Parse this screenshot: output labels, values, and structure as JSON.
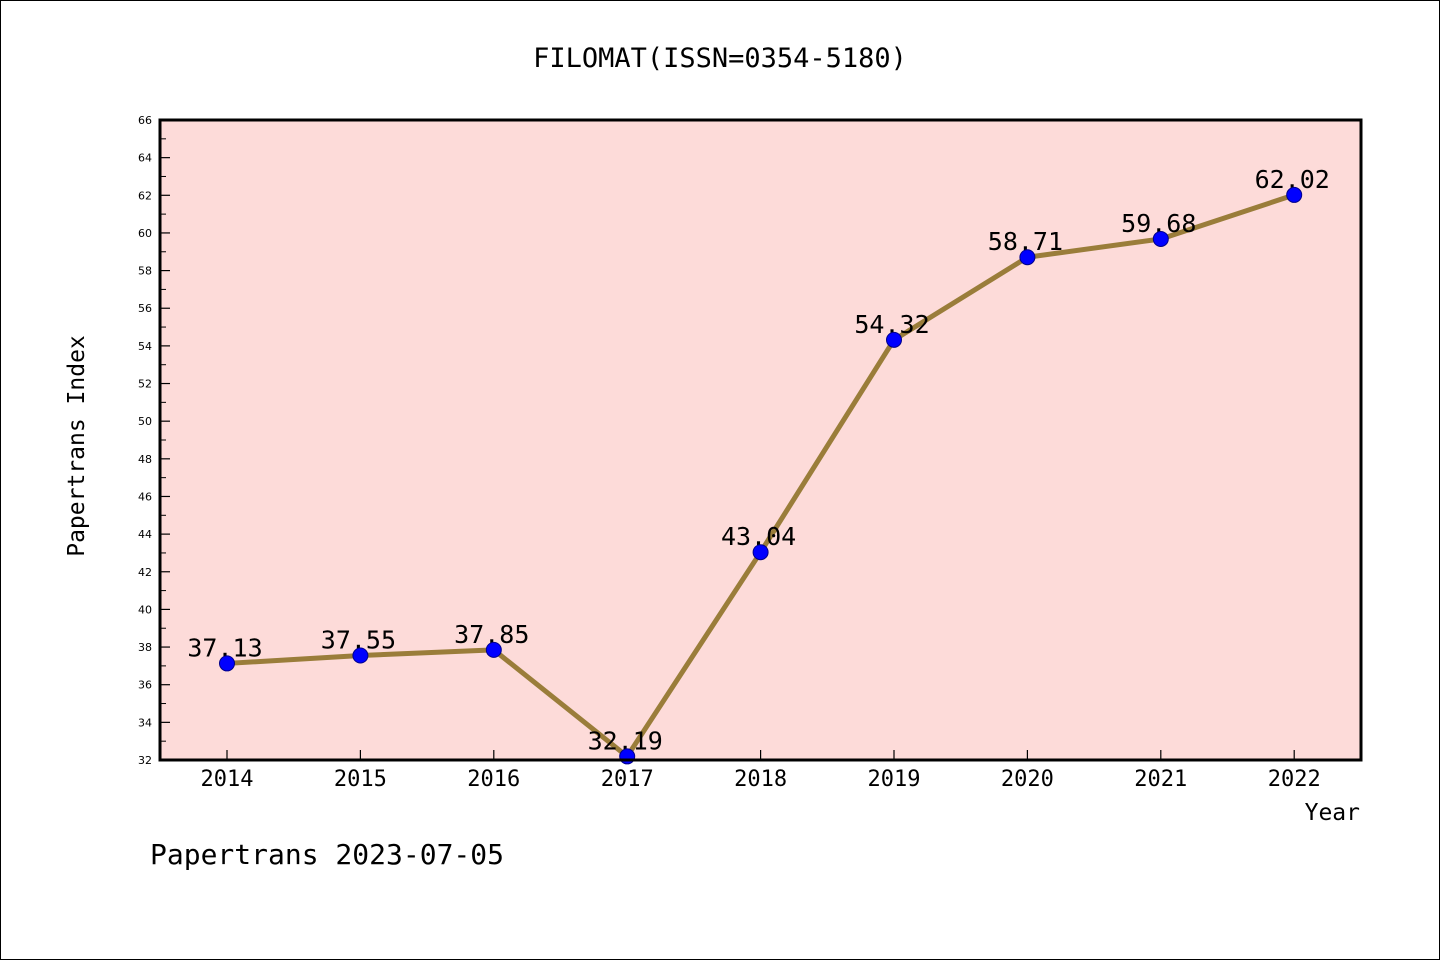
{
  "chart_data": {
    "type": "line",
    "title": "FILOMAT(ISSN=0354-5180)",
    "xlabel": "Year",
    "ylabel": "Papertrans Index",
    "categories": [
      "2014",
      "2015",
      "2016",
      "2017",
      "2018",
      "2019",
      "2020",
      "2021",
      "2022"
    ],
    "series": [
      {
        "values": [
          37.13,
          37.55,
          37.85,
          32.19,
          43.04,
          54.32,
          58.71,
          59.68,
          62.02
        ],
        "labels": [
          "37.13",
          "37.55",
          "37.85",
          "32.19",
          "43.04",
          "54.32",
          "58.71",
          "59.68",
          "62.02"
        ]
      }
    ],
    "ylim": [
      32,
      66
    ],
    "yticks": [
      "32",
      "34",
      "36",
      "38",
      "40",
      "42",
      "44",
      "46",
      "48",
      "50",
      "52",
      "54",
      "56",
      "58",
      "60",
      "62",
      "64",
      "66"
    ],
    "grid": false,
    "colors": {
      "plot_background": "#fddbd9",
      "line": "#9a7d3a",
      "marker": "#0000ff"
    }
  },
  "footer": "Papertrans 2023-07-05"
}
